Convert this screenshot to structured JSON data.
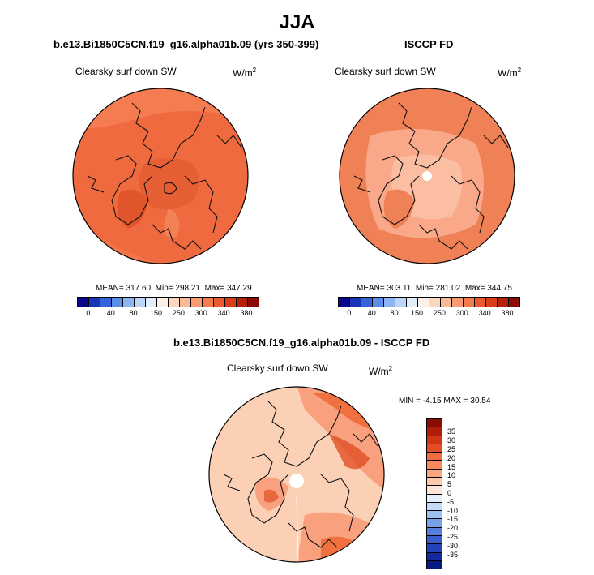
{
  "figure": {
    "season": "JJA"
  },
  "panels": [
    {
      "title": "b.e13.Bi1850C5CN.f19_g16.alpha01b.09 (yrs 350-399)",
      "variable": "Clearsky surf down SW",
      "units_base": "W/m",
      "units_exp": "2",
      "mean_label": "MEAN=",
      "mean": "317.60",
      "min_label": "Min=",
      "min": "298.21",
      "max_label": "Max=",
      "max": "347.29"
    },
    {
      "title": "ISCCP FD",
      "variable": "Clearsky surf down SW",
      "units_base": "W/m",
      "units_exp": "2",
      "mean_label": "MEAN=",
      "mean": "303.11",
      "min_label": "Min=",
      "min": "281.02",
      "max_label": "Max=",
      "max": "344.75"
    },
    {
      "title": "b.e13.Bi1850C5CN.f19_g16.alpha01b.09 - ISCCP FD",
      "variable": "Clearsky surf down SW",
      "units_base": "W/m",
      "units_exp": "2",
      "min_label": "MIN =",
      "min": "-4.15",
      "max_label": "MAX =",
      "max": "30.54"
    }
  ],
  "colorbars": {
    "absolute": {
      "ticks": [
        "0",
        "40",
        "80",
        "150",
        "250",
        "300",
        "340",
        "380"
      ],
      "colors": [
        "#08088c",
        "#1a34b8",
        "#3563d8",
        "#5b8eea",
        "#8cb6f2",
        "#bcd6f8",
        "#e2eefc",
        "#fdf1e7",
        "#fcd7bf",
        "#fbb997",
        "#f89b71",
        "#f37b4d",
        "#ea5a2f",
        "#d93d18",
        "#b4200b",
        "#8a0b03"
      ]
    },
    "difference": {
      "ticks": [
        "35",
        "30",
        "25",
        "20",
        "15",
        "10",
        "5",
        "0",
        "-5",
        "-10",
        "-15",
        "-20",
        "-25",
        "-30",
        "-35"
      ],
      "colors": [
        "#8a0b03",
        "#b01d09",
        "#d03514",
        "#e54e25",
        "#f26c3f",
        "#f78a5f",
        "#fba882",
        "#fcc8a8",
        "#fde6d6",
        "#e6eefc",
        "#c5d9f8",
        "#9dc0f2",
        "#789fe9",
        "#567fdc",
        "#3a5fcc",
        "#2442b8",
        "#122a9e",
        "#071a80"
      ]
    }
  },
  "map_colors": {
    "panel1_base": "#ef6b3f",
    "panel1_light": "#f78a5f",
    "panel1_dark": "#e0552c",
    "panel2_base": "#f08055",
    "panel2_light": "#f9a98a",
    "panel2_pale": "#fcc8ac",
    "diff_base": "#fcd0b4",
    "diff_mid": "#f9a17f",
    "diff_dark": "#f0703f",
    "diff_darker": "#e04f24"
  }
}
